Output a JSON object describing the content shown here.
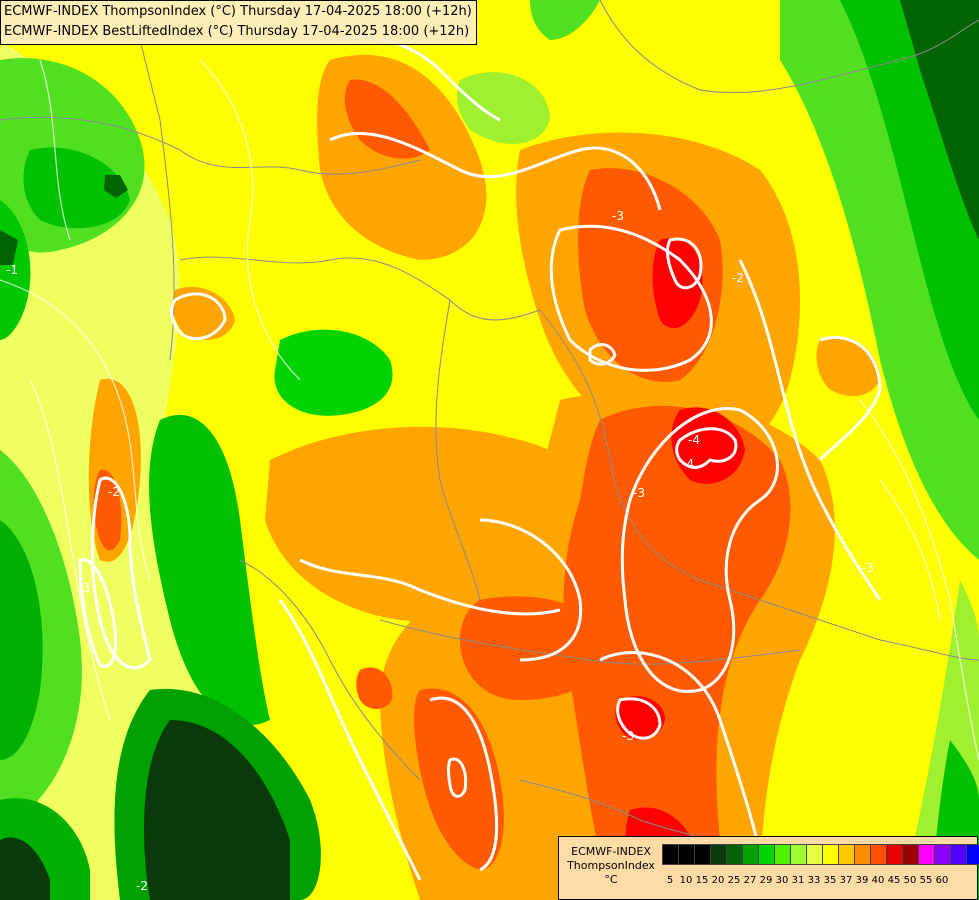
{
  "header": {
    "line1": "ECMWF-INDEX ThompsonIndex (°C) Thursday 17-04-2025 18:00 (+12h)",
    "line2": "ECMWF-INDEX BestLiftedIndex (°C) Thursday 17-04-2025 18:00 (+12h)"
  },
  "legend": {
    "title1": "ECMWF-INDEX",
    "title2": "ThompsonIndex",
    "unit": "°C",
    "labels": [
      "5",
      "10",
      "15",
      "20",
      "25",
      "27",
      "29",
      "30",
      "31",
      "33",
      "35",
      "37",
      "39",
      "40",
      "45",
      "50",
      "55",
      "60"
    ],
    "colors": [
      "#000000",
      "#000000",
      "#000000",
      "#0a3a0a",
      "#006400",
      "#00a000",
      "#00d400",
      "#50f000",
      "#a0ff30",
      "#e6ff40",
      "#ffff00",
      "#ffc800",
      "#ff8c00",
      "#ff5000",
      "#e60000",
      "#a00000",
      "#ff00ff",
      "#9000ff",
      "#5000ff",
      "#0000ff"
    ]
  },
  "contour_labels": [
    "-3",
    "-3",
    "-3",
    "-4",
    "-4",
    "-2",
    "-3",
    "-2",
    "-3",
    "-2",
    "-1"
  ],
  "colors": {
    "background_yellow": "#ffff00",
    "orange": "#ffa500",
    "red_orange": "#ff5a00",
    "red": "#ff0000",
    "green": "#00c800",
    "dark_green": "#005000",
    "lime": "#a0f030",
    "contour": "#ffffff",
    "border_line": "#8a8a8a"
  }
}
